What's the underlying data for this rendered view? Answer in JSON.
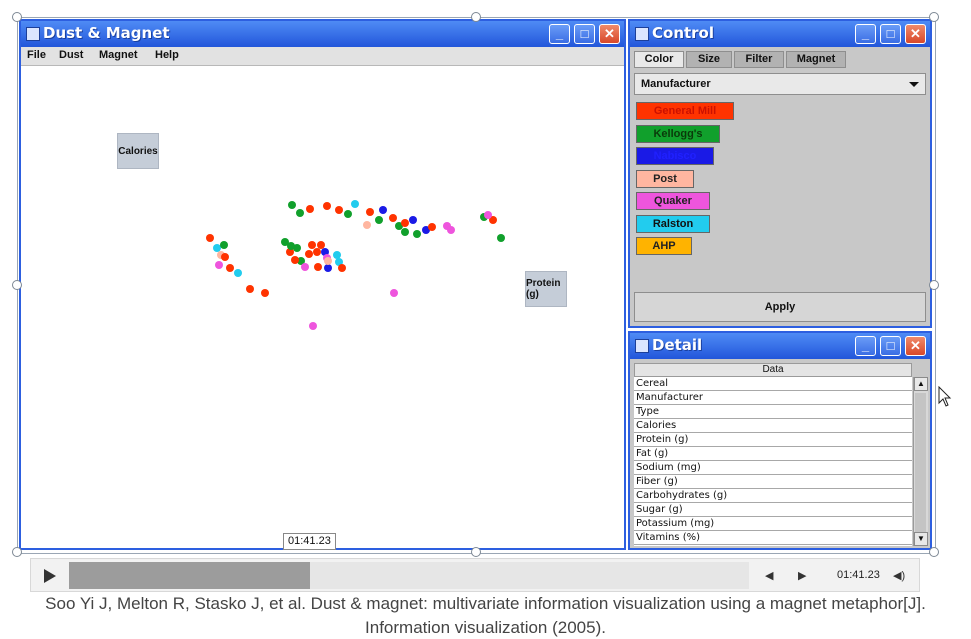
{
  "dust_window": {
    "title": "Dust & Magnet",
    "menu": [
      "File",
      "Dust",
      "Magnet",
      "Help"
    ],
    "magnets": [
      {
        "label": "Calories"
      },
      {
        "label": "Protein (g)"
      }
    ]
  },
  "control_window": {
    "title": "Control",
    "tabs": [
      "Color",
      "Size",
      "Filter",
      "Magnet"
    ],
    "active_tab": "Color",
    "dropdown_value": "Manufacturer",
    "legend": [
      {
        "label": "General Mill",
        "color": "#ff3300",
        "text_color": "#cc1100"
      },
      {
        "label": "Kellogg's",
        "color": "#11a02c",
        "text_color": "#0a3a0a"
      },
      {
        "label": "Nabisco",
        "color": "#1a1ae6",
        "text_color": "#2020ff"
      },
      {
        "label": "Post",
        "color": "#ffb6a0",
        "text_color": "#222222"
      },
      {
        "label": "Quaker",
        "color": "#ee55dd",
        "text_color": "#222222"
      },
      {
        "label": "Ralston",
        "color": "#22ccee",
        "text_color": "#111111"
      },
      {
        "label": "AHP",
        "color": "#ffb300",
        "text_color": "#222222"
      }
    ],
    "apply_label": "Apply"
  },
  "detail_window": {
    "title": "Detail",
    "header": "Data",
    "rows": [
      "Cereal",
      "Manufacturer",
      "Type",
      "Calories",
      "Protein (g)",
      "Fat (g)",
      "Sodium (mg)",
      "Fiber (g)",
      "Carbohydrates (g)",
      "Sugar (g)",
      "Potassium (mg)",
      "Vitamins (%)"
    ]
  },
  "player": {
    "tooltip_time": "01:41.23",
    "current_time": "01:41.23",
    "progress_fraction": 0.355
  },
  "caption": {
    "line1": "Soo Yi J, Melton R, Stasko J, et al. Dust & magnet: multivariate information visualization using a magnet metaphor[J].",
    "line2": "Information visualization (2005)."
  },
  "dust_points": [
    {
      "c": "#11a02c"
    },
    {
      "c": "#ff3300"
    },
    {
      "c": "#11a02c"
    },
    {
      "c": "#ff3300"
    },
    {
      "c": "#ff3300"
    },
    {
      "c": "#22ccee"
    },
    {
      "c": "#11a02c"
    },
    {
      "c": "#ff3300"
    },
    {
      "c": "#1a1ae6"
    },
    {
      "c": "#11a02c"
    },
    {
      "c": "#ff3300"
    },
    {
      "c": "#ffb6a0"
    },
    {
      "c": "#11a02c"
    },
    {
      "c": "#ff3300"
    },
    {
      "c": "#1a1ae6"
    },
    {
      "c": "#11a02c"
    },
    {
      "c": "#1a1ae6"
    },
    {
      "c": "#11a02c"
    },
    {
      "c": "#ff3300"
    },
    {
      "c": "#ee55dd"
    },
    {
      "c": "#ee55dd"
    },
    {
      "c": "#11a02c"
    },
    {
      "c": "#11a02c"
    },
    {
      "c": "#ff3300"
    },
    {
      "c": "#ee55dd"
    },
    {
      "c": "#ff3300"
    },
    {
      "c": "#22ccee"
    },
    {
      "c": "#ffb6a0"
    },
    {
      "c": "#ff3300"
    },
    {
      "c": "#ff3300"
    },
    {
      "c": "#11a02c"
    },
    {
      "c": "#22ccee"
    },
    {
      "c": "#11a02c"
    },
    {
      "c": "#ff3300"
    },
    {
      "c": "#11a02c"
    },
    {
      "c": "#ff3300"
    },
    {
      "c": "#1a1ae6"
    },
    {
      "c": "#22ccee"
    },
    {
      "c": "#11a02c"
    },
    {
      "c": "#ff3300"
    },
    {
      "c": "#1a1ae6"
    },
    {
      "c": "#ff3300"
    },
    {
      "c": "#ee55dd"
    },
    {
      "c": "#ee55dd"
    },
    {
      "c": "#ff3300"
    },
    {
      "c": "#ff3300"
    },
    {
      "c": "#ff3300"
    },
    {
      "c": "#22ccee"
    },
    {
      "c": "#ffb6a0"
    },
    {
      "c": "#ee55dd"
    },
    {
      "c": "#ff3300"
    },
    {
      "c": "#ff3300"
    },
    {
      "c": "#ee55dd"
    },
    {
      "c": "#ee55dd"
    },
    {
      "c": "#11a02c"
    },
    {
      "c": "#ff3300"
    }
  ]
}
